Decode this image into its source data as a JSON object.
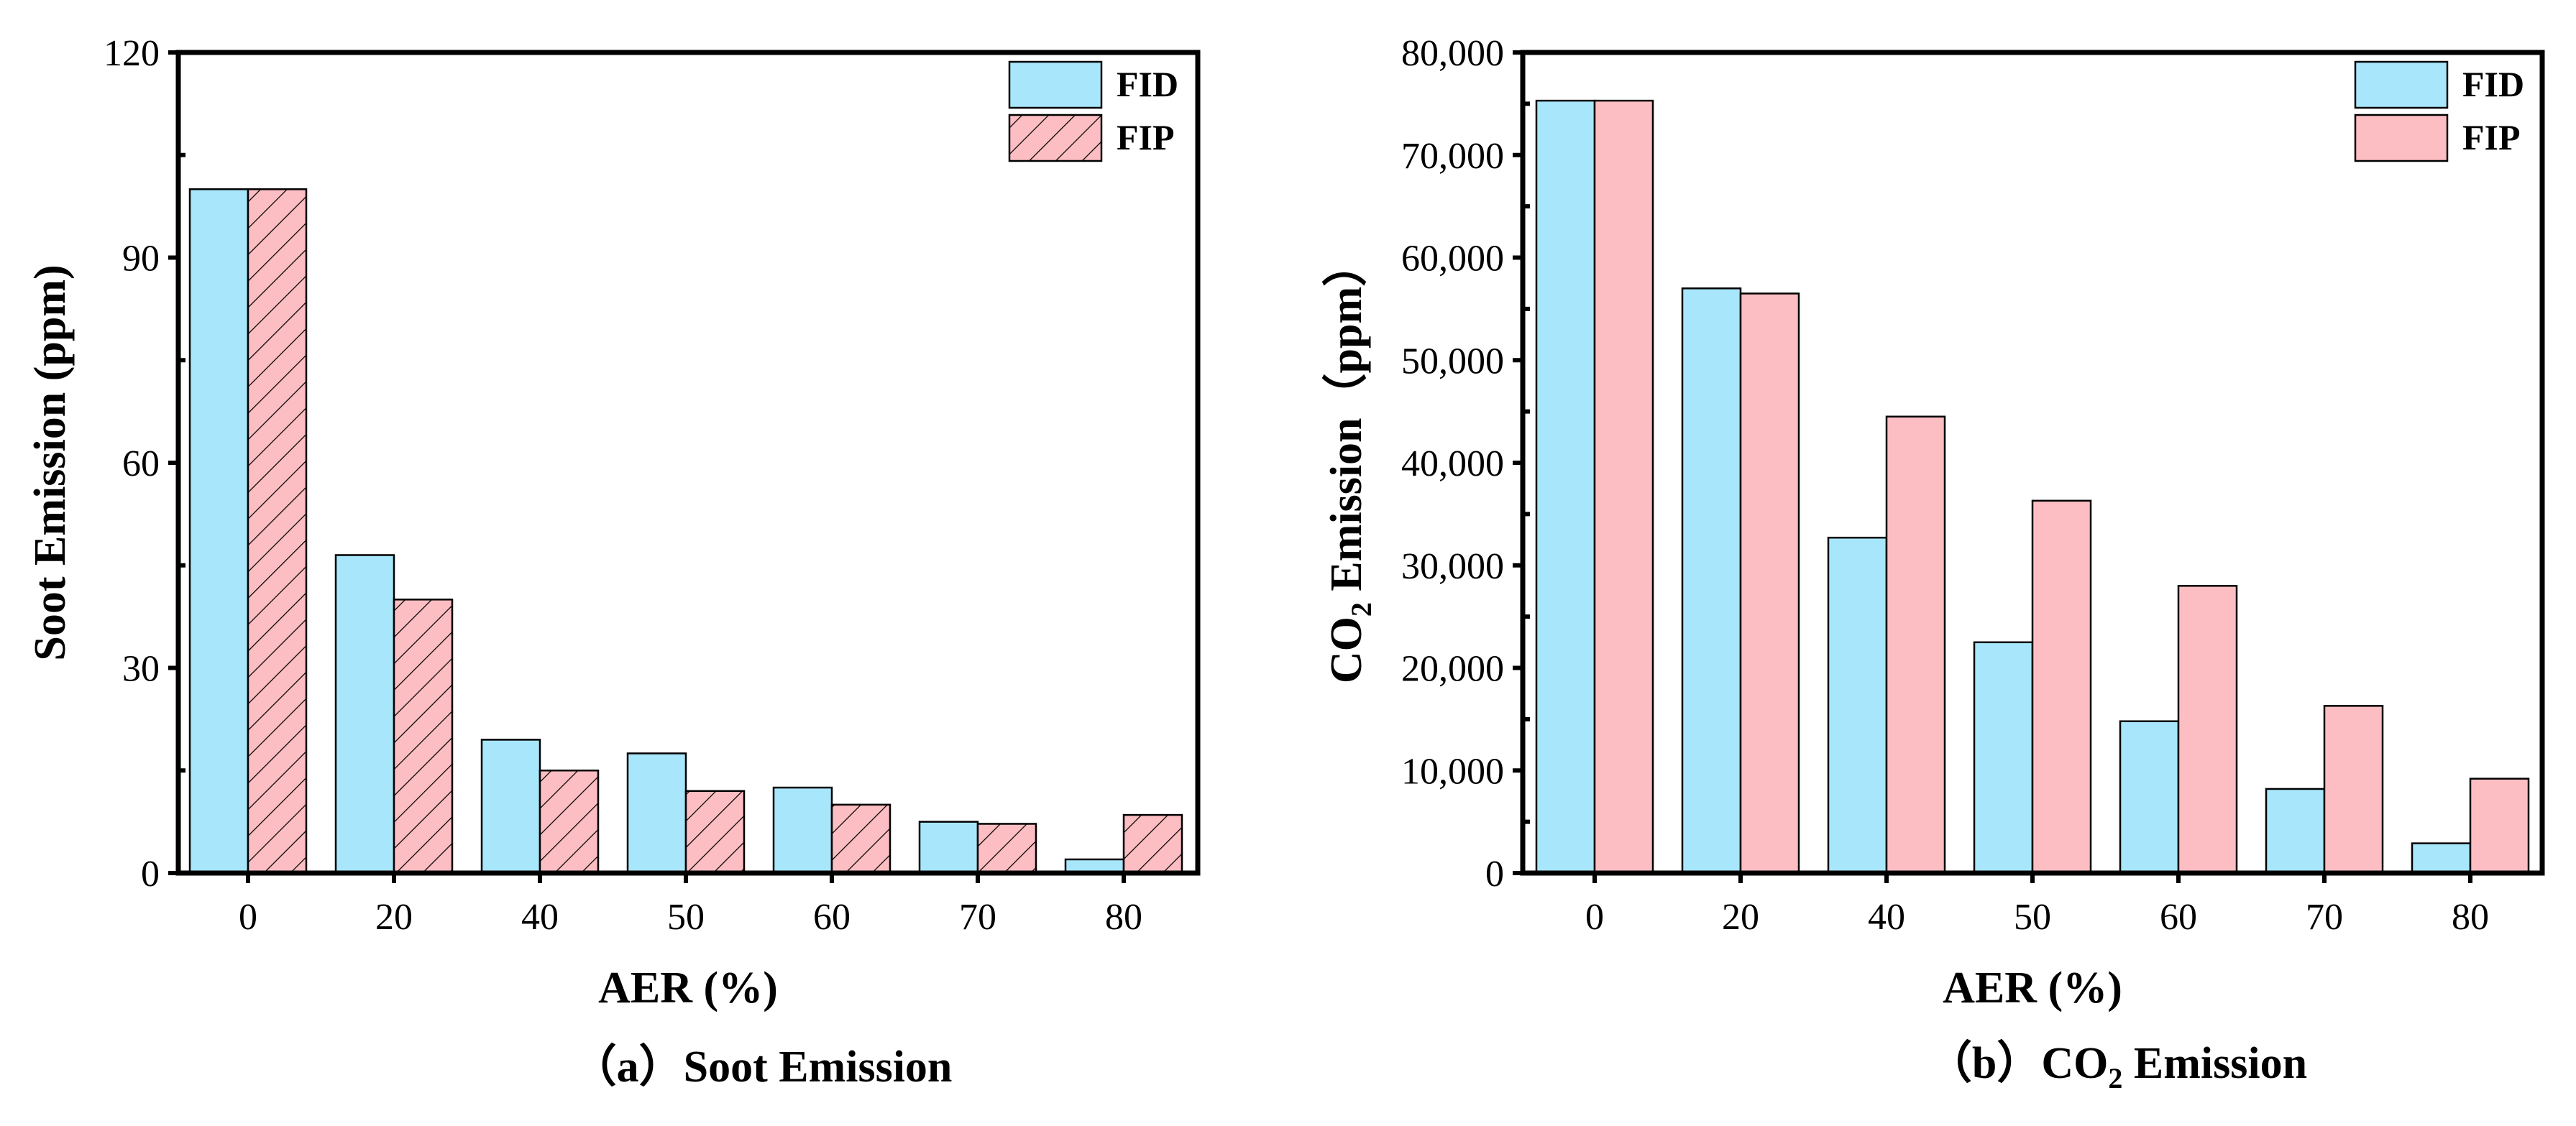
{
  "colors": {
    "fid": "#a8e6fb",
    "fip": "#fcbec2",
    "axis": "#000000"
  },
  "chart_data": [
    {
      "type": "bar",
      "title": "（a）Soot Emission",
      "caption_prefix": "（a）",
      "caption_main": "Soot Emission",
      "xlabel": "AER (%)",
      "ylabel": "Soot Emission (ppm)",
      "categories": [
        "0",
        "20",
        "40",
        "50",
        "60",
        "70",
        "80"
      ],
      "ylim": [
        0,
        120
      ],
      "yticks": [
        0,
        30,
        60,
        90,
        120
      ],
      "ytick_labels": [
        "0",
        "30",
        "60",
        "90",
        "120"
      ],
      "legend_position": "top-right",
      "series": [
        {
          "name": "FID",
          "values": [
            100,
            46.5,
            19.5,
            17.5,
            12.5,
            7.5,
            2
          ],
          "pattern": "solid"
        },
        {
          "name": "FIP",
          "values": [
            100,
            40,
            15,
            12,
            10,
            7.2,
            8.5
          ],
          "pattern": "hatched"
        }
      ]
    },
    {
      "type": "bar",
      "title": "（b）CO2 Emission",
      "caption_prefix": "（b）",
      "caption_co": "CO",
      "caption_sub": "2",
      "caption_rest": " Emission",
      "xlabel": "AER (%)",
      "ylabel": "CO2 Emission（ppm）",
      "ylabel_co": "CO",
      "ylabel_sub": "2",
      "ylabel_rest": " Emission（ppm）",
      "categories": [
        "0",
        "20",
        "40",
        "50",
        "60",
        "70",
        "80"
      ],
      "ylim": [
        0,
        80000
      ],
      "yticks": [
        0,
        10000,
        20000,
        30000,
        40000,
        50000,
        60000,
        70000,
        80000
      ],
      "ytick_labels": [
        "0",
        "10,000",
        "20,000",
        "30,000",
        "40,000",
        "50,000",
        "60,000",
        "70,000",
        "80,000"
      ],
      "legend_position": "top-right",
      "series": [
        {
          "name": "FID",
          "values": [
            75300,
            57000,
            32700,
            22500,
            14800,
            8200,
            2900
          ],
          "pattern": "solid"
        },
        {
          "name": "FIP",
          "values": [
            75300,
            56500,
            44500,
            36300,
            28000,
            16300,
            9200
          ],
          "pattern": "solid"
        }
      ]
    }
  ]
}
